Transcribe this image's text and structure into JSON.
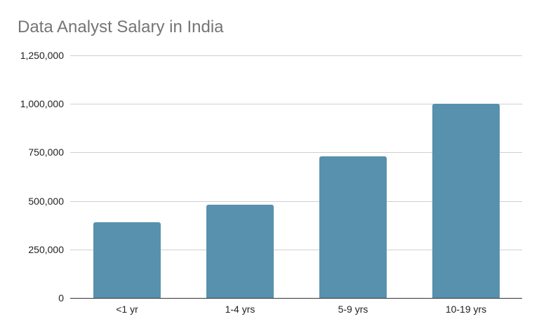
{
  "chart_data": {
    "type": "bar",
    "title": "Data Analyst Salary in India",
    "xlabel": "",
    "ylabel": "",
    "categories": [
      "<1 yr",
      "1-4 yrs",
      "5-9 yrs",
      "10-19 yrs"
    ],
    "values": [
      390000,
      480000,
      730000,
      1000000
    ],
    "ylim": [
      0,
      1250000
    ],
    "yticks": [
      "0",
      "250,000",
      "500,000",
      "750,000",
      "1,000,000",
      "1,250,000"
    ],
    "grid": true,
    "legend": "none",
    "bar_color": "#5891ad"
  }
}
